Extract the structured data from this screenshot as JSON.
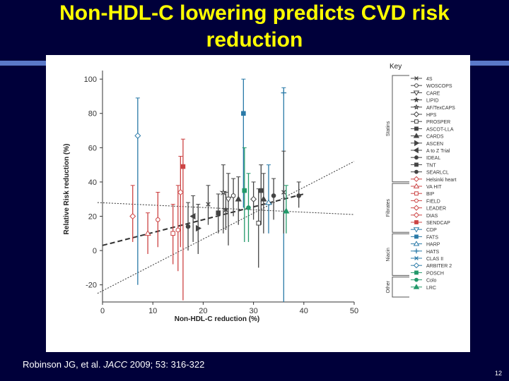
{
  "slide": {
    "title_line1": "Non-HDL-C lowering predicts CVD risk",
    "title_line2": "reduction",
    "citation_authors": "Robinson JG, et al.",
    "citation_journal": "JACC",
    "citation_ref": "2009; 53: 316-322",
    "page_number": "12",
    "background_color": "#00003a",
    "title_color": "#ffff00"
  },
  "chart_data": {
    "type": "scatter",
    "xlabel": "Non-HDL-C reduction (%)",
    "ylabel": "Relative Risk reduction (%)",
    "xlim": [
      0,
      50
    ],
    "ylim": [
      -30,
      105
    ],
    "xticks": [
      0,
      10,
      20,
      30,
      40,
      50
    ],
    "yticks": [
      -20,
      0,
      20,
      40,
      60,
      80,
      100
    ],
    "grid": false,
    "legend_title": "Key",
    "groups": [
      {
        "name": "Statins",
        "first": 0,
        "last": 14
      },
      {
        "name": "Fibrates",
        "first": 15,
        "last": 21
      },
      {
        "name": "Niacin",
        "first": 22,
        "last": 27
      },
      {
        "name": "Other",
        "first": 28,
        "last": 30
      }
    ],
    "legend": [
      {
        "label": "4S",
        "marker": "x",
        "color": "#444444"
      },
      {
        "label": "WOSCOPS",
        "marker": "circle-open",
        "color": "#444444"
      },
      {
        "label": "CARE",
        "marker": "tri-down-open",
        "color": "#444444"
      },
      {
        "label": "LIPID",
        "marker": "star",
        "color": "#444444"
      },
      {
        "label": "AF/TexCAPS",
        "marker": "star-open",
        "color": "#444444"
      },
      {
        "label": "HPS",
        "marker": "diamond-open",
        "color": "#444444"
      },
      {
        "label": "PROSPER",
        "marker": "square-open",
        "color": "#444444"
      },
      {
        "label": "ASCOT-LLA",
        "marker": "square",
        "color": "#444444"
      },
      {
        "label": "CARDS",
        "marker": "triangle",
        "color": "#444444"
      },
      {
        "label": "ASCEN",
        "marker": "tri-right",
        "color": "#444444"
      },
      {
        "label": "A to Z Trial",
        "marker": "tri-left",
        "color": "#444444"
      },
      {
        "label": "IDEAL",
        "marker": "circle",
        "color": "#444444"
      },
      {
        "label": "TNT",
        "marker": "square",
        "color": "#444444"
      },
      {
        "label": "SEARLCL",
        "marker": "circle",
        "color": "#444444"
      },
      {
        "label": "Helsinki heart",
        "marker": "diamond-open",
        "color": "#cc4444"
      },
      {
        "label": "VA HIT",
        "marker": "triangle-open",
        "color": "#cc4444"
      },
      {
        "label": "BIP",
        "marker": "square-open",
        "color": "#cc4444"
      },
      {
        "label": "FIELD",
        "marker": "circle-open",
        "color": "#cc4444"
      },
      {
        "label": "LEADER",
        "marker": "diamond-open",
        "color": "#cc4444"
      },
      {
        "label": "DIAS",
        "marker": "diamond-open",
        "color": "#cc4444"
      },
      {
        "label": "SENDCAP",
        "marker": "square",
        "color": "#cc4444"
      },
      {
        "label": "CDP",
        "marker": "tri-down-open",
        "color": "#2a7aa8"
      },
      {
        "label": "FATS",
        "marker": "square",
        "color": "#2a7aa8"
      },
      {
        "label": "HARP",
        "marker": "triangle-open",
        "color": "#2a7aa8"
      },
      {
        "label": "HATS",
        "marker": "plus",
        "color": "#2a7aa8"
      },
      {
        "label": "CLAS II",
        "marker": "x",
        "color": "#2a7aa8"
      },
      {
        "label": "ARBITER 2",
        "marker": "diamond-open",
        "color": "#2a7aa8"
      },
      {
        "label": "POSCH",
        "marker": "square",
        "color": "#22996a"
      },
      {
        "label": "Colo",
        "marker": "circle",
        "color": "#22996a"
      },
      {
        "label": "LRC",
        "marker": "triangle",
        "color": "#22996a"
      }
    ],
    "points": [
      {
        "x": 7,
        "y": 67,
        "lo": -20,
        "hi": 89,
        "color": "#2a7aa8",
        "marker": "diamond-open"
      },
      {
        "x": 6,
        "y": 20,
        "lo": 5,
        "hi": 38,
        "color": "#cc4444",
        "marker": "diamond-open"
      },
      {
        "x": 9,
        "y": 10,
        "lo": -2,
        "hi": 22,
        "color": "#cc4444",
        "marker": "triangle-open"
      },
      {
        "x": 11,
        "y": 18,
        "lo": 2,
        "hi": 34,
        "color": "#cc4444",
        "marker": "circle-open"
      },
      {
        "x": 14,
        "y": 10,
        "lo": -8,
        "hi": 27,
        "color": "#cc4444",
        "marker": "square-open"
      },
      {
        "x": 15,
        "y": 12,
        "lo": -12,
        "hi": 38,
        "color": "#cc4444",
        "marker": "circle-open"
      },
      {
        "x": 15.5,
        "y": 34,
        "lo": 2,
        "hi": 55,
        "color": "#cc4444",
        "marker": "diamond-open"
      },
      {
        "x": 16,
        "y": 49,
        "lo": -29,
        "hi": 65,
        "color": "#cc4444",
        "marker": "square"
      },
      {
        "x": 17,
        "y": 14,
        "lo": 0,
        "hi": 28,
        "color": "#444444",
        "marker": "circle"
      },
      {
        "x": 18,
        "y": 20,
        "lo": 5,
        "hi": 32,
        "color": "#444444",
        "marker": "tri-left"
      },
      {
        "x": 19,
        "y": 13,
        "lo": -2,
        "hi": 27,
        "color": "#444444",
        "marker": "tri-right"
      },
      {
        "x": 21,
        "y": 27,
        "lo": 15,
        "hi": 38,
        "color": "#444444",
        "marker": "x"
      },
      {
        "x": 23,
        "y": 22,
        "lo": 10,
        "hi": 33,
        "color": "#444444",
        "marker": "square"
      },
      {
        "x": 24,
        "y": 34,
        "lo": 10,
        "hi": 50,
        "color": "#444444",
        "marker": "star-open"
      },
      {
        "x": 24.5,
        "y": 24,
        "lo": 12,
        "hi": 34,
        "color": "#444444",
        "marker": "star"
      },
      {
        "x": 25,
        "y": 30,
        "lo": 3,
        "hi": 45,
        "color": "#444444",
        "marker": "tri-down-open"
      },
      {
        "x": 26,
        "y": 32,
        "lo": 20,
        "hi": 42,
        "color": "#444444",
        "marker": "circle-open"
      },
      {
        "x": 27,
        "y": 30,
        "lo": 15,
        "hi": 43,
        "color": "#444444",
        "marker": "triangle"
      },
      {
        "x": 28,
        "y": 80,
        "lo": 25,
        "hi": 100,
        "color": "#2a7aa8",
        "marker": "square"
      },
      {
        "x": 28.2,
        "y": 35,
        "lo": 5,
        "hi": 60,
        "color": "#22996a",
        "marker": "square"
      },
      {
        "x": 29,
        "y": 25,
        "lo": 5,
        "hi": 45,
        "color": "#22996a",
        "marker": "circle"
      },
      {
        "x": 30,
        "y": 30,
        "lo": 18,
        "hi": 40,
        "color": "#444444",
        "marker": "diamond-open"
      },
      {
        "x": 31,
        "y": 16,
        "lo": -10,
        "hi": 36,
        "color": "#444444",
        "marker": "square-open"
      },
      {
        "x": 31.5,
        "y": 35,
        "lo": 15,
        "hi": 50,
        "color": "#444444",
        "marker": "square"
      },
      {
        "x": 32,
        "y": 30,
        "lo": 10,
        "hi": 45,
        "color": "#444444",
        "marker": "triangle"
      },
      {
        "x": 33,
        "y": 28,
        "lo": 10,
        "hi": 50,
        "color": "#2a7aa8",
        "marker": "triangle-open"
      },
      {
        "x": 34,
        "y": 32,
        "lo": 18,
        "hi": 42,
        "color": "#444444",
        "marker": "circle"
      },
      {
        "x": 36,
        "y": 92,
        "lo": -30,
        "hi": 95,
        "color": "#2a7aa8",
        "marker": "plus"
      },
      {
        "x": 36,
        "y": 34,
        "lo": 10,
        "hi": 58,
        "color": "#444444",
        "marker": "x"
      },
      {
        "x": 36.5,
        "y": 23,
        "lo": 10,
        "hi": 38,
        "color": "#22996a",
        "marker": "triangle"
      },
      {
        "x": 39,
        "y": 32,
        "lo": 25,
        "hi": 40,
        "color": "#444444",
        "marker": "circle"
      }
    ],
    "fit_lines": [
      {
        "style": "dashed-bold",
        "x1": 0,
        "y1": 3,
        "x2": 40,
        "y2": 33
      },
      {
        "style": "dotted",
        "x1": -1,
        "y1": -25,
        "x2": 50,
        "y2": 52
      },
      {
        "style": "dotted",
        "x1": -1,
        "y1": 28,
        "x2": 50,
        "y2": 21
      }
    ]
  }
}
